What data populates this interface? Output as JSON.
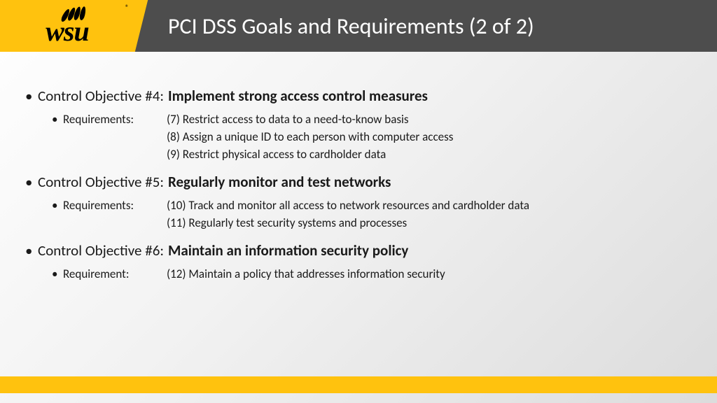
{
  "colors": {
    "accent_yellow": "#ffc20e",
    "header_gray": "#4d4d4d",
    "title_text": "#ffffff",
    "body_text": "#1a1a1a",
    "bg_light": "#ffffff",
    "bg_dark": "#dcdcdc"
  },
  "typography": {
    "title_fontsize_pt": 24,
    "objective_fontsize_pt": 16,
    "requirement_fontsize_pt": 13,
    "title_weight": 400,
    "objective_title_weight": 700
  },
  "logo": {
    "text": "wsu",
    "registered": "®"
  },
  "title": "PCI DSS Goals and Requirements (2 of 2)",
  "bullets": {
    "level1": "•",
    "level2": "•"
  },
  "objectives": [
    {
      "label": "Control Objective #4:",
      "title": "Implement strong access control measures",
      "req_label": "Requirements:",
      "lines": [
        "(7) Restrict access to data to a need-to-know basis",
        "(8) Assign a unique ID to each person with computer access",
        "(9) Restrict physical access to cardholder data"
      ]
    },
    {
      "label": "Control Objective #5:",
      "title": "Regularly monitor and test networks",
      "req_label": "Requirements:",
      "lines": [
        "(10) Track and monitor all access to network resources and cardholder data",
        "(11) Regularly test security systems and processes"
      ]
    },
    {
      "label": "Control Objective #6:",
      "title": "Maintain an information security policy",
      "req_label": "Requirement:",
      "lines": [
        "(12) Maintain a policy that addresses information security"
      ]
    }
  ]
}
